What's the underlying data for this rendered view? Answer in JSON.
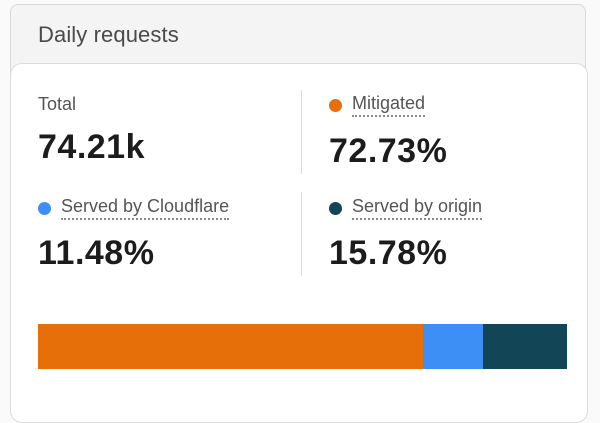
{
  "card": {
    "title": "Daily requests"
  },
  "stats": {
    "total": {
      "label": "Total",
      "value": "74.21k"
    },
    "mitigated": {
      "label": "Mitigated",
      "value": "72.73%",
      "percent": 72.73,
      "color": "#e76f0a"
    },
    "cloudflare": {
      "label": "Served by Cloudflare",
      "value": "11.48%",
      "percent": 11.48,
      "color": "#3d8ff5"
    },
    "origin": {
      "label": "Served by origin",
      "value": "15.78%",
      "percent": 15.78,
      "color": "#124556"
    }
  }
}
